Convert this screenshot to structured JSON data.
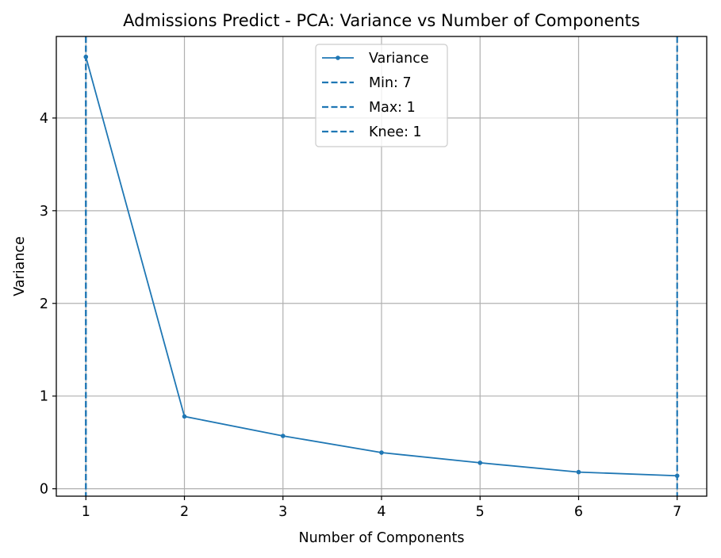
{
  "chart_data": {
    "type": "line",
    "title": "Admissions Predict - PCA: Variance vs Number of Components",
    "xlabel": "Number of Components",
    "ylabel": "Variance",
    "x": [
      1,
      2,
      3,
      4,
      5,
      6,
      7
    ],
    "xticks": [
      "1",
      "2",
      "3",
      "4",
      "5",
      "6",
      "7"
    ],
    "yticks": [
      "0",
      "1",
      "2",
      "3",
      "4"
    ],
    "xlim": [
      0.7,
      7.3
    ],
    "ylim": [
      -0.08,
      4.88
    ],
    "grid": true,
    "legend_position": "top-center",
    "series": [
      {
        "name": "Variance",
        "values": [
          4.66,
          0.78,
          0.57,
          0.39,
          0.28,
          0.18,
          0.14
        ],
        "color": "#1f77b4"
      }
    ],
    "vlines": [
      {
        "label": "Min: 7",
        "x": 7,
        "color": "#1f77b4",
        "style": "dashed"
      },
      {
        "label": "Max: 1",
        "x": 1,
        "color": "#1f77b4",
        "style": "dashed"
      },
      {
        "label": "Knee: 1",
        "x": 1,
        "color": "#1f77b4",
        "style": "dashed"
      }
    ]
  }
}
